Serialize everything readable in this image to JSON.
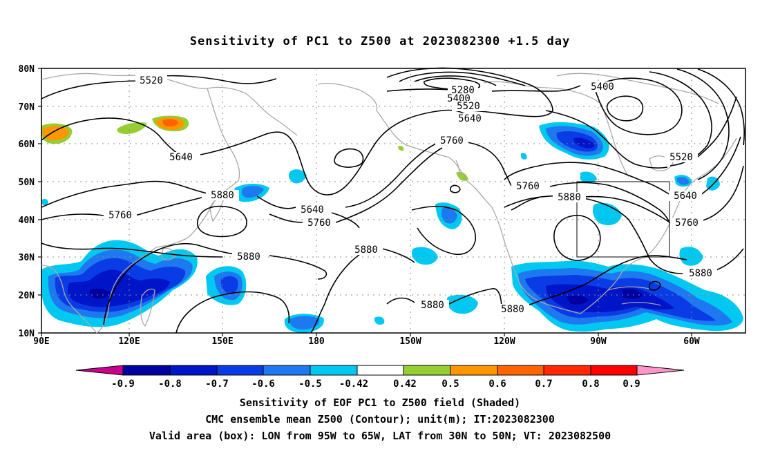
{
  "title": "Sensitivity of PC1 to Z500 at 2023082300 +1.5 day",
  "lat_labels": [
    "80N",
    "70N",
    "60N",
    "50N",
    "40N",
    "30N",
    "20N",
    "10N"
  ],
  "lon_labels": [
    "90E",
    "120E",
    "150E",
    "180",
    "150W",
    "120W",
    "90W",
    "60W"
  ],
  "contour_labels": {
    "c5520_west": "5520",
    "c5280": "5280",
    "c5400_a": "5400",
    "c5400_b": "5400",
    "c5520_mid": "5520",
    "c5640_mid": "5640",
    "c5760_mid": "5760",
    "c5640_west": "5640",
    "c5880_west": "5880",
    "c5760_west": "5760",
    "c5640_pac": "5640",
    "c5760_pac": "5760",
    "c5880_sw": "5880",
    "c5880_pac": "5880",
    "c5880_hi": "5880",
    "c5760_na": "5760",
    "c5880_na": "5880",
    "c5880_sna": "5880",
    "c5520_east": "5520",
    "c5640_east": "5640",
    "c5760_east": "5760",
    "c5880_east": "5880"
  },
  "colorbar": {
    "labels": [
      "-0.9",
      "-0.8",
      "-0.7",
      "-0.6",
      "-0.5",
      "-0.42",
      "0.42",
      "0.5",
      "0.6",
      "0.7",
      "0.8",
      "0.9"
    ],
    "colors": [
      "#c8008c",
      "#0000a0",
      "#0014c8",
      "#0a3ce6",
      "#1e78f0",
      "#00c8f0",
      "#ffffff",
      "#96cd32",
      "#ff9600",
      "#ff6400",
      "#ff2800",
      "#ff0000",
      "#ff96c8"
    ]
  },
  "captions": {
    "line1": "Sensitivity of EOF PC1 to Z500 field (Shaded)",
    "line2": "CMC ensemble mean Z500 (Contour); unit(m); IT:2023082300",
    "line3": "Valid area (box): LON from 95W to 65W, LAT from 30N to 50N; VT: 2023082500"
  }
}
